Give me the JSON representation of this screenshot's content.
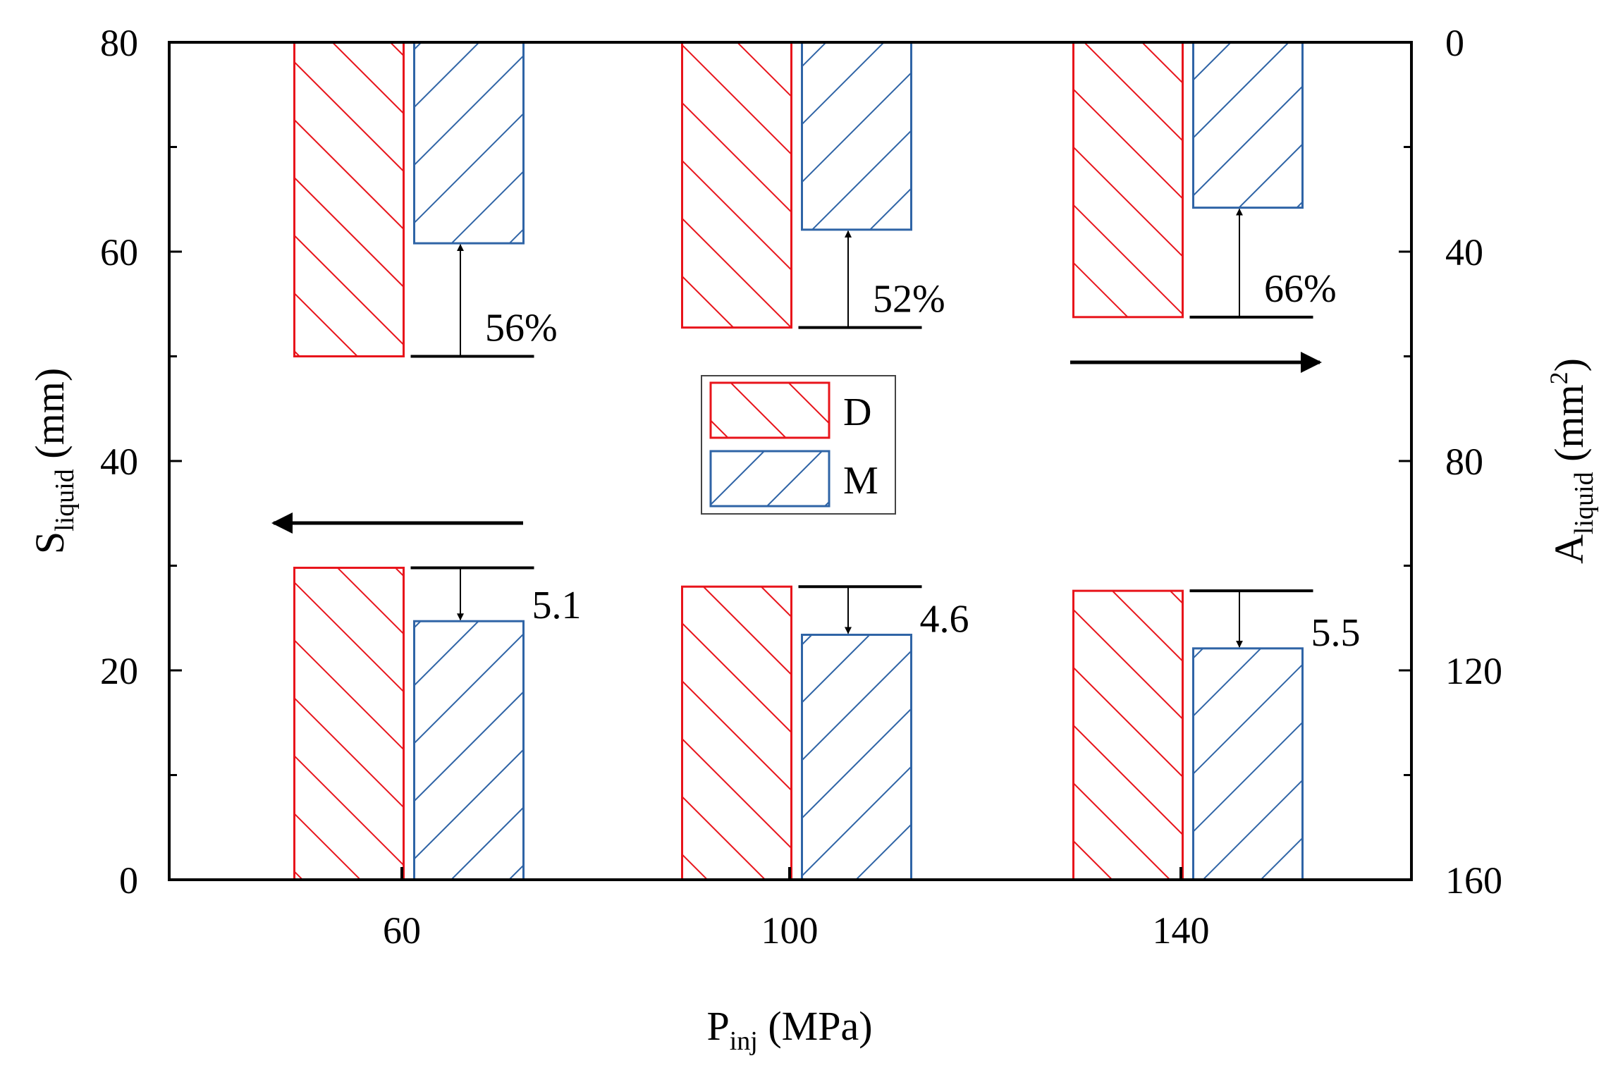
{
  "chart_data": {
    "type": "bar",
    "categories": [
      "60",
      "100",
      "140"
    ],
    "xlabel": {
      "main": "P",
      "sub": "inj",
      "unit": " (MPa)"
    },
    "ylabel_left": {
      "main": "S",
      "sub": "liquid",
      "unit": " (mm)"
    },
    "ylabel_right": {
      "main": "A",
      "sub": "liquid",
      "unit_prefix": " (mm",
      "sup": "2",
      "unit_suffix": ")"
    },
    "ylim_left": [
      0,
      80
    ],
    "ylim_right_inverted": [
      0,
      160
    ],
    "left_ticks": [
      "0",
      "20",
      "40",
      "60",
      "80"
    ],
    "right_ticks": [
      "160",
      "120",
      "80",
      "40",
      "0"
    ],
    "series_left_axis": [
      {
        "name": "D",
        "color": "#e8141b",
        "values": [
          29.8,
          28.0,
          27.6
        ]
      },
      {
        "name": "M",
        "color": "#2f64a6",
        "values": [
          24.7,
          23.4,
          22.1
        ]
      }
    ],
    "series_right_axis": [
      {
        "name": "D",
        "color": "#e8141b",
        "values": [
          60,
          54.5,
          52.5
        ]
      },
      {
        "name": "M",
        "color": "#2f64a6",
        "values": [
          38.4,
          35.8,
          31.6
        ]
      }
    ],
    "annotations_left": [
      "5.1",
      "4.6",
      "5.5"
    ],
    "annotations_right": [
      "56%",
      "52%",
      "66%"
    ],
    "legend": [
      {
        "label": "D",
        "color": "#e8141b"
      },
      {
        "label": "M",
        "color": "#2f64a6"
      }
    ],
    "legend_position": "center"
  }
}
